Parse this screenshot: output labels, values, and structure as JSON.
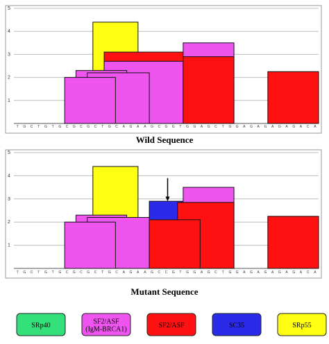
{
  "chart_data": [
    {
      "type": "bar",
      "title": "Wild Sequence",
      "ylim": [
        0,
        5
      ],
      "yticks": [
        "1",
        "2",
        "3",
        "4",
        "5"
      ],
      "grid": true,
      "sequence": "TGCTGTGCGCGCTGCAGAAGCGGTGGAGCTGGAGAGAGAGACA",
      "motifs": [
        {
          "factor": "SRp55",
          "start": 14,
          "end": 22,
          "value": 4.4
        },
        {
          "factor": "SF2/ASF",
          "start": 16,
          "end": 30,
          "value": 3.1
        },
        {
          "factor": "SF2/ASF (IgM-BRCA1)",
          "start": 30,
          "end": 39,
          "value": 3.5
        },
        {
          "factor": "SF2/ASF (IgM-BRCA1)",
          "start": 16,
          "end": 30,
          "value": 2.7
        },
        {
          "factor": "SF2/ASF (IgM-BRCA1)",
          "start": 11,
          "end": 20,
          "value": 2.3
        },
        {
          "factor": "SF2/ASF (IgM-BRCA1)",
          "start": 13,
          "end": 24,
          "value": 2.2
        },
        {
          "factor": "SF2/ASF (IgM-BRCA1)",
          "start": 9,
          "end": 18,
          "value": 2.0
        },
        {
          "factor": "SF2/ASF",
          "start": 30,
          "end": 39,
          "value": 2.9
        },
        {
          "factor": "SF2/ASF",
          "start": 45,
          "end": 54,
          "value": 2.25
        }
      ]
    },
    {
      "type": "bar",
      "title": "Mutant Sequence",
      "ylim": [
        0,
        5
      ],
      "yticks": [
        "1",
        "2",
        "3",
        "4",
        "5"
      ],
      "grid": true,
      "sequence": "TGCTGTGCGCGCTGCAGAAGCCGTGGAGCTGGAGAGAGAGACA",
      "mutation_marker_at": 27,
      "motifs": [
        {
          "factor": "SRp55",
          "start": 14,
          "end": 22,
          "value": 4.4
        },
        {
          "factor": "SC35",
          "start": 24,
          "end": 31,
          "value": 2.9
        },
        {
          "factor": "SF2/ASF (IgM-BRCA1)",
          "start": 30,
          "end": 39,
          "value": 3.5
        },
        {
          "factor": "SF2/ASF",
          "start": 29,
          "end": 39,
          "value": 2.85
        },
        {
          "factor": "SF2/ASF (IgM-BRCA1)",
          "start": 11,
          "end": 20,
          "value": 2.3
        },
        {
          "factor": "SF2/ASF (IgM-BRCA1)",
          "start": 13,
          "end": 24,
          "value": 2.2
        },
        {
          "factor": "SF2/ASF (IgM-BRCA1)",
          "start": 9,
          "end": 18,
          "value": 2.0
        },
        {
          "factor": "SF2/ASF",
          "start": 24,
          "end": 33,
          "value": 2.1
        },
        {
          "factor": "SF2/ASF",
          "start": 45,
          "end": 54,
          "value": 2.25
        }
      ]
    }
  ],
  "legend": [
    {
      "label": "SRp40",
      "color": "#33e07a"
    },
    {
      "label": "SF2/ASF\n(IgM-BRCA1)",
      "color": "#ee55ee"
    },
    {
      "label": "SF2/ASF",
      "color": "#ff1111"
    },
    {
      "label": "SC35",
      "color": "#2a2ae8"
    },
    {
      "label": "SRp55",
      "color": "#ffff11"
    }
  ],
  "factor_colors": {
    "SRp40": "#33e07a",
    "SF2/ASF (IgM-BRCA1)": "#ee55ee",
    "SF2/ASF": "#ff1111",
    "SC35": "#2a2ae8",
    "SRp55": "#ffff11"
  }
}
